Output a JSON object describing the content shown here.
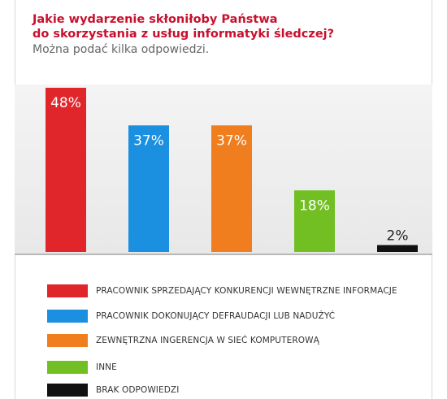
{
  "question": {
    "line1": "Jakie wydarzenie skłoniłoby Państwa",
    "line2": "do skorzystania z usług informatyki śledczej?",
    "note": "Można podać kilka odpowiedzi."
  },
  "chart_data": {
    "type": "bar",
    "title": "Jakie wydarzenie skłoniłoby Państwa do skorzystania z usług informatyki śledczej?",
    "subtitle": "Można podać kilka odpowiedzi.",
    "categories": [
      "PRACOWNIK SPRZEDAJĄCY KONKURENCJI WEWNĘTRZNE INFORMACJE",
      "PRACOWNIK DOKONUJĄCY DEFRAUDACJI LUB NADUŻYĆ",
      "ZEWNĘTRZNA INGERENCJA W SIEĆ KOMPUTEROWĄ",
      "INNE",
      "BRAK ODPOWIEDZI"
    ],
    "values": [
      48,
      37,
      37,
      18,
      2
    ],
    "value_labels": [
      "48%",
      "37%",
      "37%",
      "18%",
      "2%"
    ],
    "colors": [
      "#e1262b",
      "#1b8fe0",
      "#f07d1e",
      "#72bf24",
      "#111111"
    ],
    "ylim": [
      0,
      48
    ],
    "grid": false,
    "legend_position": "bottom",
    "xlabel": "",
    "ylabel": ""
  }
}
